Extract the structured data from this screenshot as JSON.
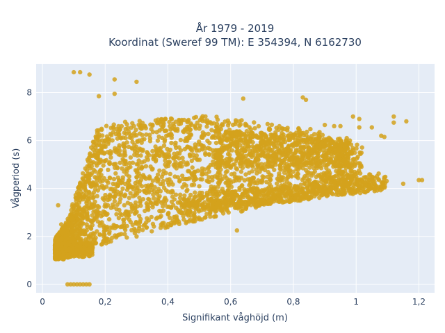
{
  "chart_data": {
    "type": "scatter",
    "title_line1": "År 1979 - 2019",
    "title_line2": "Koordinat (Sweref 99 TM): E 354394, N 6162730",
    "xlabel": "Signifikant våghöjd (m)",
    "ylabel": "Vågperiod (s)",
    "xlim": [
      -0.02,
      1.25
    ],
    "ylim": [
      -0.35,
      9.2
    ],
    "xticks": [
      0,
      0.2,
      0.4,
      0.6,
      0.8,
      1,
      1.2
    ],
    "xtick_labels": [
      "0",
      "0,2",
      "0,4",
      "0,6",
      "0,8",
      "1",
      "1,2"
    ],
    "yticks": [
      0,
      2,
      4,
      6,
      8
    ],
    "ytick_labels": [
      "0",
      "2",
      "4",
      "6",
      "8"
    ],
    "grid": true,
    "colors": {
      "marker": "#d4a21c",
      "plot_bg": "#e5ecf6",
      "grid": "#ffffff"
    },
    "series": [
      {
        "points": [
          [
            0.1,
            8.85
          ],
          [
            0.12,
            8.85
          ],
          [
            0.15,
            8.75
          ],
          [
            0.23,
            8.55
          ],
          [
            0.23,
            7.95
          ],
          [
            0.3,
            8.45
          ],
          [
            0.18,
            7.85
          ],
          [
            1.2,
            4.35
          ],
          [
            1.21,
            4.35
          ],
          [
            1.15,
            4.2
          ],
          [
            1.12,
            7.0
          ],
          [
            1.12,
            6.75
          ],
          [
            1.16,
            6.8
          ],
          [
            1.09,
            6.15
          ],
          [
            1.08,
            6.2
          ],
          [
            1.05,
            6.55
          ],
          [
            1.01,
            6.9
          ],
          [
            0.99,
            7.0
          ],
          [
            0.95,
            6.6
          ],
          [
            0.93,
            6.6
          ],
          [
            0.9,
            6.65
          ],
          [
            0.98,
            6.0
          ],
          [
            0.97,
            6.1
          ],
          [
            1.01,
            6.55
          ],
          [
            1.08,
            4.1
          ],
          [
            1.06,
            4.05
          ],
          [
            1.03,
            4.15
          ],
          [
            0.83,
            7.8
          ],
          [
            0.84,
            7.7
          ],
          [
            0.64,
            7.75
          ],
          [
            0.67,
            5.75
          ],
          [
            0.62,
            2.25
          ],
          [
            0.3,
            2.0
          ],
          [
            0.08,
            0.0
          ],
          [
            0.09,
            0.0
          ],
          [
            0.1,
            0.0
          ],
          [
            0.11,
            0.0
          ],
          [
            0.12,
            0.0
          ],
          [
            0.13,
            0.0
          ],
          [
            0.14,
            0.0
          ],
          [
            0.15,
            0.0
          ],
          [
            0.04,
            1.4
          ],
          [
            0.04,
            1.55
          ],
          [
            0.05,
            1.3
          ],
          [
            0.06,
            1.2
          ],
          [
            0.05,
            3.3
          ],
          [
            0.06,
            2.5
          ]
        ]
      }
    ]
  }
}
